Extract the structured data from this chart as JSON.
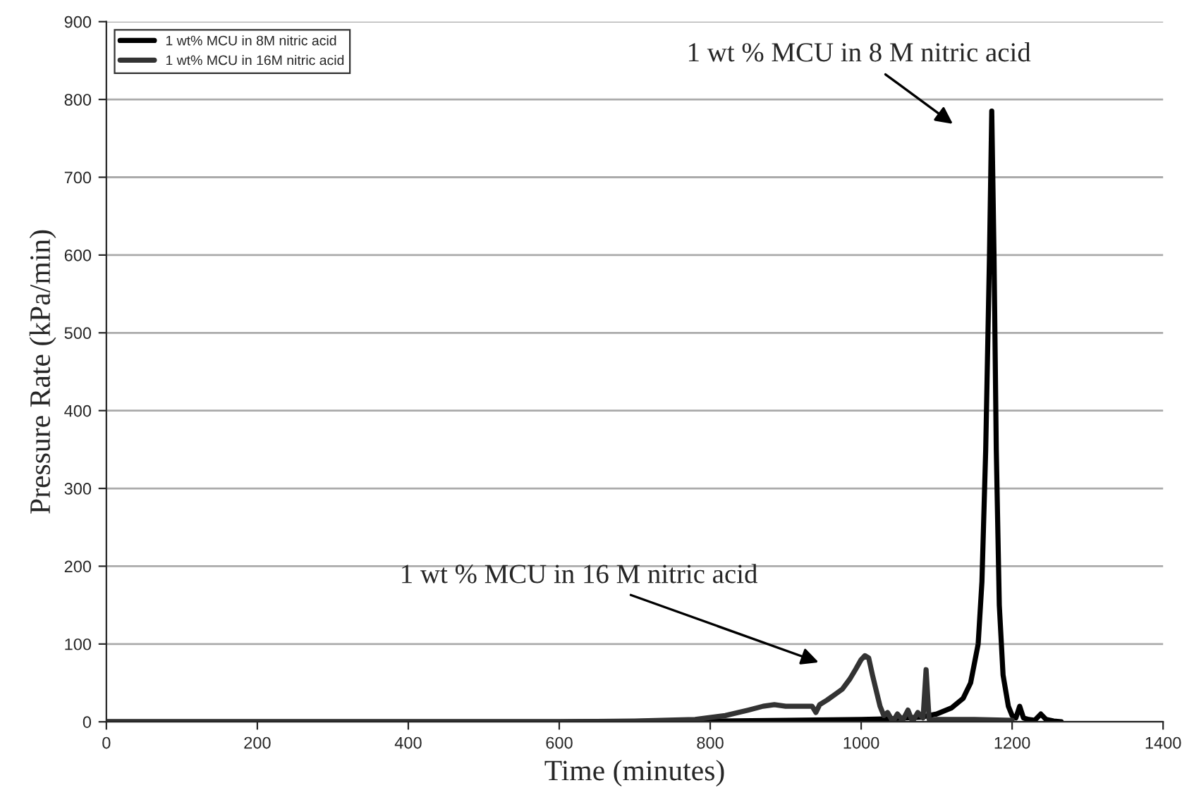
{
  "chart_data": {
    "type": "line",
    "xlabel": "Time (minutes)",
    "ylabel": "Pressure Rate (kPa/min)",
    "xlim": [
      0,
      1400
    ],
    "xticks": [
      0,
      200,
      400,
      600,
      800,
      1000,
      1200,
      1400
    ],
    "ylim": [
      0,
      900
    ],
    "yticks": [
      0,
      100,
      200,
      300,
      400,
      500,
      600,
      700,
      800,
      900
    ],
    "grid": "y",
    "legend": "top left",
    "line_style": "solid",
    "marker": "none",
    "series": [
      {
        "name": "1 wt% MCU in 8M nitric acid",
        "color": "#000000",
        "x": [
          0,
          200,
          400,
          600,
          800,
          900,
          1000,
          1040,
          1080,
          1100,
          1120,
          1135,
          1145,
          1155,
          1160,
          1165,
          1170,
          1173,
          1176,
          1179,
          1183,
          1188,
          1195,
          1200,
          1205,
          1210,
          1215,
          1222,
          1230,
          1238,
          1245,
          1255,
          1265
        ],
        "values": [
          0,
          0,
          0,
          0,
          1,
          2,
          3,
          4,
          6,
          10,
          18,
          30,
          50,
          100,
          180,
          350,
          600,
          785,
          600,
          350,
          150,
          60,
          20,
          8,
          5,
          20,
          5,
          3,
          2,
          10,
          3,
          1,
          0
        ]
      },
      {
        "name": "1 wt% MCU in 16M nitric acid",
        "color": "#333333",
        "x": [
          0,
          200,
          400,
          600,
          700,
          780,
          820,
          850,
          870,
          885,
          900,
          920,
          935,
          940,
          945,
          955,
          965,
          975,
          985,
          993,
          1000,
          1005,
          1010,
          1015,
          1020,
          1025,
          1030,
          1035,
          1042,
          1048,
          1055,
          1062,
          1068,
          1075,
          1082,
          1086,
          1090,
          1095,
          1100,
          1150,
          1200
        ],
        "values": [
          0,
          0,
          0,
          0,
          1,
          3,
          8,
          15,
          20,
          22,
          20,
          20,
          20,
          12,
          22,
          28,
          35,
          42,
          55,
          68,
          80,
          85,
          82,
          60,
          40,
          20,
          8,
          12,
          0,
          10,
          2,
          15,
          0,
          12,
          5,
          67,
          3,
          2,
          3,
          3,
          2
        ]
      }
    ],
    "annotations": [
      "1 wt % MCU in 8 M nitric acid",
      "1 wt % MCU in 16 M nitric acid"
    ]
  }
}
